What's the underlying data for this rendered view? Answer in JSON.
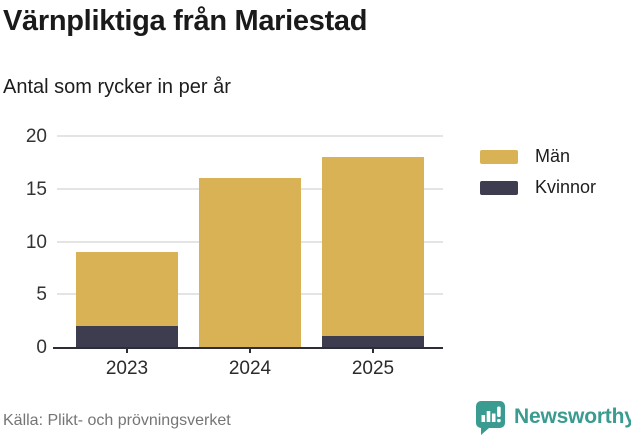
{
  "header": {
    "title": "Värnpliktiga från Mariestad",
    "subtitle": "Antal som rycker in per år"
  },
  "chart_data": {
    "type": "bar",
    "stacked": true,
    "title": "Värnpliktiga från Mariestad",
    "subtitle": "Antal som rycker in per år",
    "categories": [
      "2023",
      "2024",
      "2025"
    ],
    "series": [
      {
        "name": "Män",
        "color": "#d9b256",
        "values": [
          7,
          16,
          17
        ]
      },
      {
        "name": "Kvinnor",
        "color": "#3e3d4f",
        "values": [
          2,
          0,
          1
        ]
      }
    ],
    "stack_order_bottom_to_top": [
      "Kvinnor",
      "Män"
    ],
    "totals": [
      9,
      16,
      18
    ],
    "xlabel": "",
    "ylabel": "",
    "ylim": [
      0,
      20
    ],
    "yticks": [
      0,
      5,
      10,
      15,
      20
    ],
    "grid": true,
    "legend_position": "right"
  },
  "legend": {
    "items": [
      {
        "label": "Män",
        "color": "#d9b256"
      },
      {
        "label": "Kvinnor",
        "color": "#3e3d4f"
      }
    ]
  },
  "footer": {
    "source": "Källa: Plikt- och prövningsverket",
    "brand": "Newsworthy"
  },
  "colors": {
    "men": "#d9b256",
    "women": "#3e3d4f",
    "axis": "#2d2d3a",
    "grid": "#e4e4e4",
    "text": "#1a1a1a",
    "muted": "#757575",
    "brand_teal": "#3a9b90"
  }
}
